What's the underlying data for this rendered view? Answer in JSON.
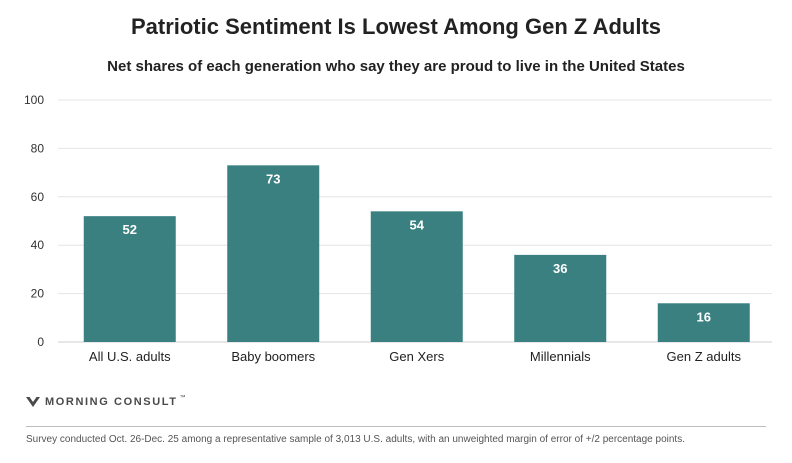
{
  "colors": {
    "bar": "#3a8080",
    "grid": "#e4e4e4",
    "axis": "#cfcfcf",
    "value_label": "#ffffff"
  },
  "brand": {
    "name": "MORNING CONSULT",
    "trademark": "™",
    "icon": "morning-consult-logo-icon"
  },
  "footnote": "Survey conducted Oct. 26-Dec. 25 among a representative sample of 3,013 U.S. adults, with an unweighted margin of error of +/2 percentage points.",
  "chart_data": {
    "type": "bar",
    "title": "Patriotic Sentiment Is Lowest Among Gen Z Adults",
    "subtitle": "Net shares of each generation who say they are proud to live in the United States",
    "xlabel": "",
    "ylabel": "",
    "categories": [
      "All U.S. adults",
      "Baby boomers",
      "Gen Xers",
      "Millennials",
      "Gen Z adults"
    ],
    "values": [
      52,
      73,
      54,
      36,
      16
    ],
    "data_labels": [
      "52",
      "73",
      "54",
      "36",
      "16"
    ],
    "ylim": [
      0,
      100
    ],
    "yticks": [
      0,
      20,
      40,
      60,
      80,
      100
    ],
    "grid": true,
    "legend": "none"
  }
}
